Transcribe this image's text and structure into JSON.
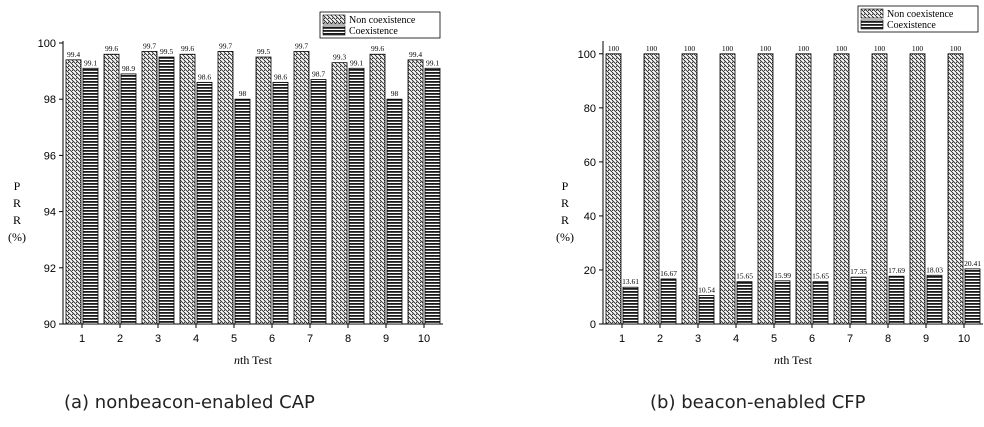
{
  "chart_data": [
    {
      "type": "bar",
      "caption": "(a) nonbeacon-enabled CAP",
      "xlabel_italic": "n",
      "xlabel_rest": "th Test",
      "ylabel_lines": [
        "P",
        "R",
        "R",
        "(%)"
      ],
      "categories": [
        "1",
        "2",
        "3",
        "4",
        "5",
        "6",
        "7",
        "8",
        "9",
        "10"
      ],
      "ylim": [
        90,
        100
      ],
      "yticks": [
        90,
        92,
        94,
        96,
        98,
        100
      ],
      "series": [
        {
          "name": "Non coexistence",
          "values": [
            99.4,
            99.6,
            99.7,
            99.6,
            99.7,
            99.5,
            99.7,
            99.3,
            99.6,
            99.4
          ],
          "labels": [
            "99.4",
            "99.6",
            "99.7",
            "99.6",
            "99.7",
            "99.5",
            "99.7",
            "99.3",
            "99.6",
            "99.4"
          ]
        },
        {
          "name": "Coexistence",
          "values": [
            99.1,
            98.9,
            99.5,
            98.6,
            98.0,
            98.6,
            98.7,
            99.1,
            98.0,
            99.1
          ],
          "labels": [
            "99.1",
            "98.9",
            "99.5",
            "98.6",
            "98",
            "98.6",
            "98.7",
            "99.1",
            "98",
            "99.1"
          ]
        }
      ],
      "legend_position": "top-right",
      "grid": false
    },
    {
      "type": "bar",
      "caption": "(b) beacon-enabled CFP",
      "xlabel_italic": "n",
      "xlabel_rest": "th Test",
      "ylabel_lines": [
        "P",
        "R",
        "R",
        "(%)"
      ],
      "categories": [
        "1",
        "2",
        "3",
        "4",
        "5",
        "6",
        "7",
        "8",
        "9",
        "10"
      ],
      "ylim": [
        0,
        104
      ],
      "yticks": [
        0,
        20,
        40,
        60,
        80,
        100
      ],
      "series": [
        {
          "name": "Non coexistence",
          "values": [
            100,
            100,
            100,
            100,
            100,
            100,
            100,
            100,
            100,
            100
          ],
          "labels": [
            "100",
            "100",
            "100",
            "100",
            "100",
            "100",
            "100",
            "100",
            "100",
            "100"
          ]
        },
        {
          "name": "Coexistence",
          "values": [
            13.61,
            16.67,
            10.54,
            15.65,
            15.99,
            15.65,
            17.35,
            17.69,
            18.03,
            20.41
          ],
          "labels": [
            "13.61",
            "16.67",
            "10.54",
            "15.65",
            "15.99",
            "15.65",
            "17.35",
            "17.69",
            "18.03",
            "20.41"
          ]
        }
      ],
      "legend_position": "top-right",
      "grid": false
    }
  ],
  "colors": {
    "bar_fill": "#ffffff",
    "hatch": "#222222",
    "axis": "#000000"
  }
}
